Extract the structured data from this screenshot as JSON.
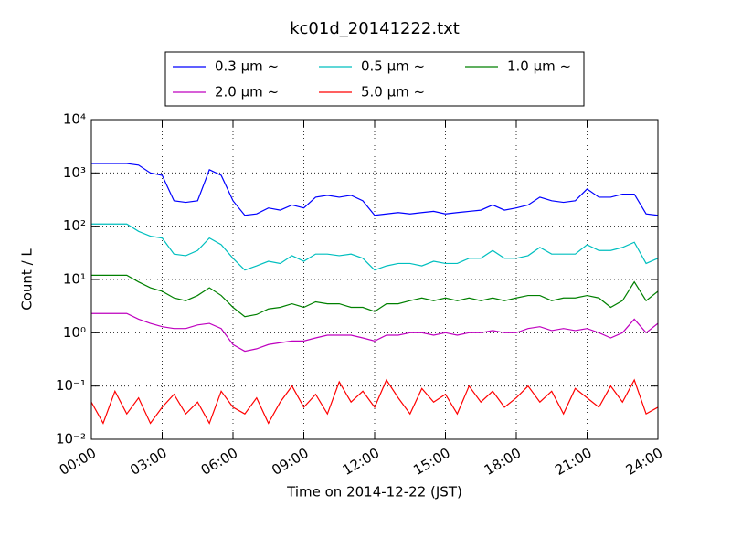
{
  "chart_data": {
    "type": "line",
    "title": "kc01d_20141222.txt",
    "xlabel": "Time on 2014-12-22 (JST)",
    "ylabel": "Count / L",
    "log_y": true,
    "grid": true,
    "legend": "top",
    "x": [
      0,
      0.5,
      1,
      1.5,
      2,
      2.5,
      3,
      3.5,
      4,
      4.5,
      5,
      5.5,
      6,
      6.5,
      7,
      7.5,
      8,
      8.5,
      9,
      9.5,
      10,
      10.5,
      11,
      11.5,
      12,
      12.5,
      13,
      13.5,
      14,
      14.5,
      15,
      15.5,
      16,
      16.5,
      17,
      17.5,
      18,
      18.5,
      19,
      19.5,
      20,
      20.5,
      21,
      21.5,
      22,
      22.5,
      23,
      23.5,
      24
    ],
    "xlim": [
      0,
      24
    ],
    "xticks": [
      {
        "value": 0,
        "label": "00:00"
      },
      {
        "value": 3,
        "label": "03:00"
      },
      {
        "value": 6,
        "label": "06:00"
      },
      {
        "value": 9,
        "label": "09:00"
      },
      {
        "value": 12,
        "label": "12:00"
      },
      {
        "value": 15,
        "label": "15:00"
      },
      {
        "value": 18,
        "label": "18:00"
      },
      {
        "value": 21,
        "label": "21:00"
      },
      {
        "value": 24,
        "label": "24:00"
      }
    ],
    "ylim": [
      0.01,
      10000
    ],
    "yticks": [
      {
        "value": 0.01,
        "label": "10⁻²"
      },
      {
        "value": 0.1,
        "label": "10⁻¹"
      },
      {
        "value": 1,
        "label": "10⁰"
      },
      {
        "value": 10,
        "label": "10¹"
      },
      {
        "value": 100,
        "label": "10²"
      },
      {
        "value": 1000,
        "label": "10³"
      },
      {
        "value": 10000,
        "label": "10⁴"
      }
    ],
    "series": [
      {
        "name": "0.3 μm ~",
        "color": "#0000ff",
        "values": [
          1500,
          1500,
          1500,
          1500,
          1400,
          1000,
          900,
          300,
          280,
          300,
          1150,
          900,
          300,
          160,
          170,
          220,
          200,
          250,
          220,
          350,
          380,
          350,
          380,
          300,
          160,
          170,
          180,
          170,
          180,
          190,
          170,
          180,
          190,
          200,
          250,
          200,
          220,
          250,
          350,
          300,
          280,
          300,
          500,
          350,
          350,
          400,
          400,
          170,
          160
        ]
      },
      {
        "name": "0.5 μm ~",
        "color": "#00bfbf",
        "values": [
          110,
          110,
          110,
          110,
          80,
          65,
          60,
          30,
          28,
          35,
          60,
          45,
          25,
          15,
          18,
          22,
          20,
          28,
          22,
          30,
          30,
          28,
          30,
          25,
          15,
          18,
          20,
          20,
          18,
          22,
          20,
          20,
          25,
          25,
          35,
          25,
          25,
          28,
          40,
          30,
          30,
          30,
          45,
          35,
          35,
          40,
          50,
          20,
          25
        ]
      },
      {
        "name": "1.0 μm ~",
        "color": "#008000",
        "values": [
          12,
          12,
          12,
          12,
          9,
          7,
          6,
          4.5,
          4,
          5,
          7,
          5,
          3,
          2,
          2.2,
          2.8,
          3,
          3.5,
          3,
          3.8,
          3.5,
          3.5,
          3,
          3,
          2.5,
          3.5,
          3.5,
          4,
          4.5,
          4,
          4.5,
          4,
          4.5,
          4,
          4.5,
          4,
          4.5,
          5,
          5,
          4,
          4.5,
          4.5,
          5,
          4.5,
          3,
          4,
          9,
          4,
          6
        ]
      },
      {
        "name": "2.0 μm ~",
        "color": "#bf00bf",
        "values": [
          2.3,
          2.3,
          2.3,
          2.3,
          1.8,
          1.5,
          1.3,
          1.2,
          1.2,
          1.4,
          1.5,
          1.2,
          0.6,
          0.45,
          0.5,
          0.6,
          0.65,
          0.7,
          0.7,
          0.8,
          0.9,
          0.9,
          0.9,
          0.8,
          0.7,
          0.9,
          0.9,
          1,
          1,
          0.9,
          1,
          0.9,
          1,
          1,
          1.1,
          1,
          1,
          1.2,
          1.3,
          1.1,
          1.2,
          1.1,
          1.2,
          1,
          0.8,
          1,
          1.8,
          1,
          1.5
        ]
      },
      {
        "name": "5.0 μm ~",
        "color": "#ff0000",
        "values": [
          0.05,
          0.02,
          0.08,
          0.03,
          0.06,
          0.02,
          0.04,
          0.07,
          0.03,
          0.05,
          0.02,
          0.08,
          0.04,
          0.03,
          0.06,
          0.02,
          0.05,
          0.1,
          0.04,
          0.07,
          0.03,
          0.12,
          0.05,
          0.08,
          0.04,
          0.13,
          0.06,
          0.03,
          0.09,
          0.05,
          0.07,
          0.03,
          0.1,
          0.05,
          0.08,
          0.04,
          0.06,
          0.1,
          0.05,
          0.08,
          0.03,
          0.09,
          0.06,
          0.04,
          0.1,
          0.05,
          0.13,
          0.03,
          0.04
        ]
      }
    ]
  }
}
